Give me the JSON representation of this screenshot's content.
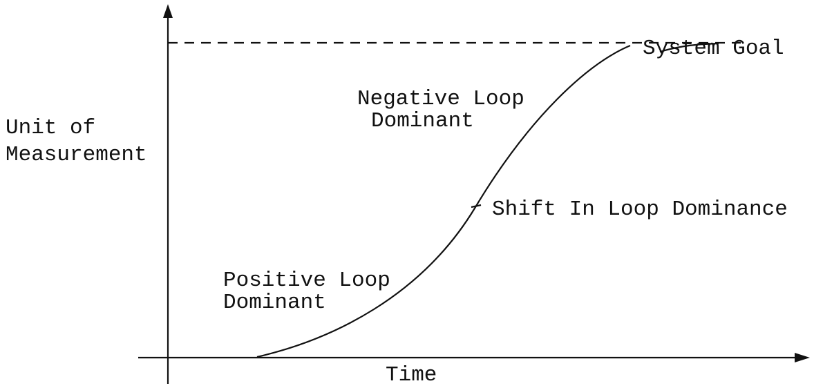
{
  "axes": {
    "y_label": [
      "Unit of",
      "Measurement"
    ],
    "x_label": "Time"
  },
  "annotations": [
    {
      "name": "negative-loop",
      "lines": [
        "Negative Loop",
        "Dominant"
      ]
    },
    {
      "name": "system-goal",
      "lines": [
        "System Goal"
      ]
    },
    {
      "name": "shift",
      "lines": [
        "Shift In Loop Dominance"
      ]
    },
    {
      "name": "positive-loop",
      "lines": [
        "Positive Loop",
        "Dominant"
      ]
    }
  ]
}
